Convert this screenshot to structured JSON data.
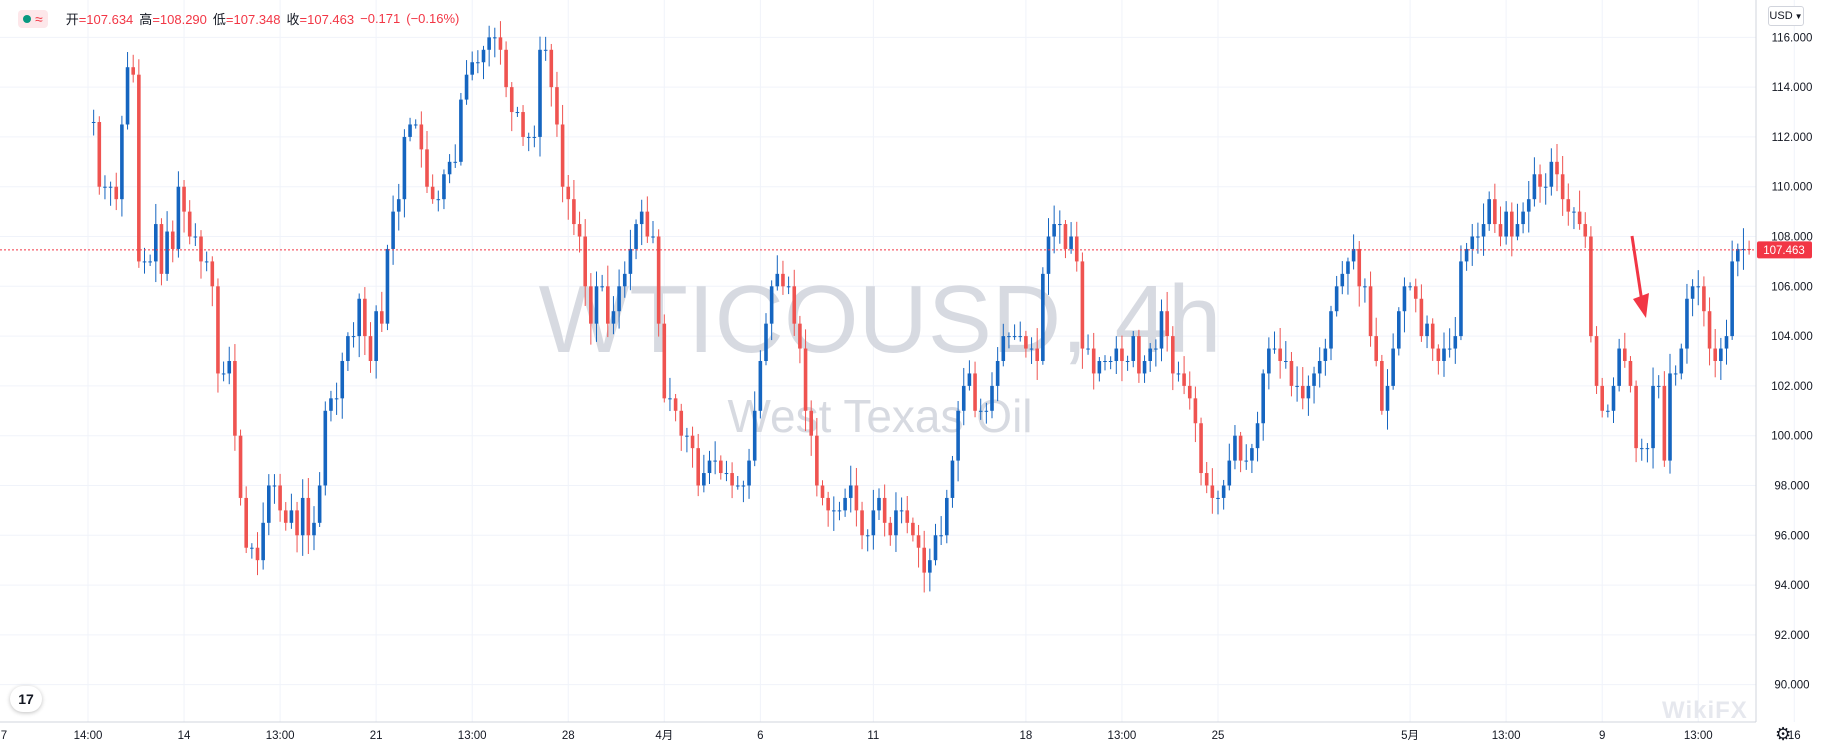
{
  "header": {
    "status_indicator": "live",
    "approx_symbol": "≈",
    "open_label": "开",
    "open_value": "=107.634",
    "high_label": "高",
    "high_value": "=108.290",
    "low_label": "低",
    "low_value": "=107.348",
    "close_label": "收",
    "close_value": "=107.463",
    "change": "−0.171",
    "change_pct": "(−0.16%)"
  },
  "currency_select": {
    "value": "USD",
    "icon": "chevron-down-icon"
  },
  "watermark": {
    "symbol": "WTICOUSD, 4h",
    "name": "West Texas Oil"
  },
  "brand": {
    "logo_text": "17",
    "corner_mark": "WikiFX"
  },
  "colors": {
    "up": "#1565c0",
    "down": "#ef5350",
    "price_line": "#f23645",
    "grid": "#f0f3fa"
  },
  "chart_data": {
    "type": "candlestick",
    "title": "",
    "ylim": [
      88.5,
      117.5
    ],
    "y_ticks": [
      "116.000",
      "114.000",
      "112.000",
      "110.000",
      "108.000",
      "106.000",
      "104.000",
      "102.000",
      "100.000",
      "98.000",
      "96.000",
      "94.000",
      "92.000",
      "90.000"
    ],
    "x_ticks": [
      {
        "label": "7",
        "i": -17
      },
      {
        "label": "14:00",
        "i": 0
      },
      {
        "label": "14",
        "i": 17
      },
      {
        "label": "13:00",
        "i": 34
      },
      {
        "label": "21",
        "i": 51
      },
      {
        "label": "13:00",
        "i": 68
      },
      {
        "label": "28",
        "i": 85
      },
      {
        "label": "4月",
        "i": 102
      },
      {
        "label": "6",
        "i": 119
      },
      {
        "label": "11",
        "i": 139
      },
      {
        "label": "18",
        "i": 166
      },
      {
        "label": "13:00",
        "i": 183
      },
      {
        "label": "25",
        "i": 200
      },
      {
        "label": "5月",
        "i": 234
      },
      {
        "label": "13:00",
        "i": 251
      },
      {
        "label": "9",
        "i": 268
      },
      {
        "label": "13:00",
        "i": 285
      },
      {
        "label": "16",
        "i": 302
      },
      {
        "label": "13:00",
        "i": 319
      }
    ],
    "current_price": "107.463",
    "annotation": "red downward arrow",
    "closes": [
      112.6,
      112.6,
      110,
      110,
      110,
      109.5,
      112.5,
      114.8,
      114.5,
      107,
      107,
      107,
      108.5,
      106.5,
      108.2,
      107.5,
      110,
      109,
      108,
      108,
      107,
      107,
      106,
      102.5,
      102.5,
      103,
      100,
      97.5,
      95.5,
      95.5,
      95,
      96.5,
      98,
      98,
      97,
      96.5,
      97,
      96,
      97.5,
      96,
      96.5,
      98,
      101,
      101.5,
      101.5,
      103,
      104,
      104,
      105.5,
      104,
      103,
      105,
      104.5,
      107.5,
      109,
      109.5,
      112,
      112.5,
      112.5,
      111.5,
      110,
      109.5,
      109.5,
      110.5,
      111,
      111,
      113.5,
      114.5,
      115,
      115,
      115.5,
      116,
      116,
      115.5,
      114,
      113,
      113,
      112,
      112,
      112,
      115.5,
      115.5,
      114,
      112.5,
      110,
      109.5,
      108.5,
      108,
      106,
      104.5,
      106,
      106,
      104.5,
      105,
      106,
      106.5,
      107.5,
      108.5,
      109,
      108,
      108,
      104.5,
      101.5,
      101.5,
      101,
      100,
      100,
      99.5,
      98,
      98.5,
      99,
      99,
      98.5,
      98.5,
      98,
      98,
      98,
      99,
      101,
      103,
      104.5,
      106,
      106.5,
      106,
      106,
      104.5,
      103.5,
      101,
      100,
      98,
      97.5,
      97,
      97,
      97,
      97.5,
      98,
      97,
      96,
      96,
      97,
      97.5,
      96.5,
      96,
      97,
      97,
      96.5,
      96,
      95.5,
      94.5,
      95,
      96,
      96,
      97.5,
      99,
      101,
      102,
      102.5,
      101,
      101,
      101,
      102,
      103,
      104,
      104,
      104,
      104,
      103.5,
      103.5,
      103,
      106.5,
      108,
      108.5,
      108.5,
      107.5,
      108,
      107,
      103.5,
      103.5,
      102.5,
      103,
      103,
      103,
      103.5,
      103,
      103,
      104,
      102.5,
      103,
      103.5,
      103.5,
      105,
      104,
      102.5,
      102.5,
      102,
      101.5,
      100.5,
      98.5,
      98,
      97.5,
      97.5,
      98,
      99,
      100,
      99,
      99,
      99.5,
      100.5,
      102.5,
      103.5,
      103.5,
      103,
      103,
      102,
      102,
      101.5,
      102,
      102.5,
      103,
      103.5,
      105,
      106,
      106.5,
      107,
      107.5,
      106,
      106,
      104,
      103,
      101,
      102,
      103.5,
      105,
      106,
      106,
      105.5,
      104,
      104.5,
      103.5,
      103,
      103.5,
      103.5,
      104,
      107,
      107.5,
      108,
      108,
      108.5,
      109.5,
      108.5,
      108,
      109,
      108,
      108.5,
      109,
      109.5,
      110.5,
      110,
      110,
      111,
      110.5,
      109.5,
      109,
      109,
      108.5,
      108,
      104,
      102,
      101,
      101,
      102,
      103.5,
      103,
      102,
      99.5,
      99.5,
      99.5,
      102,
      102,
      99,
      102.5,
      102.5,
      103.5,
      105.5,
      106,
      106,
      105,
      103.5,
      103,
      103.5,
      104,
      107,
      107.5,
      107.5,
      107.463
    ]
  }
}
